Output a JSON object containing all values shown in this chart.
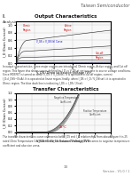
{
  "page_title": "Taiwan Semiconductor",
  "section_label": "II.\nAnalysis",
  "chart1_title": "Output Characteristics",
  "chart1_xlabel": "V_DS (Drain to Source Voltage (V))",
  "chart1_ylabel": "I_D (Drain Current)",
  "chart1_note": "V_GS = V_GS (th) Curve",
  "chart1_regions": [
    "Ohmic Region",
    "Active Region",
    "Cut-off Region"
  ],
  "chart1_region_colors": [
    "#cc0000",
    "#cc0000",
    "#cc0000"
  ],
  "chart2_title": "Transfer Characteristics",
  "chart2_xlabel": "V_GS (Gate to Source Voltage (V))",
  "chart2_ylabel": "I_D (Drain Current)",
  "chart2_note": "25°C",
  "chart2_annotations": [
    "Negative Temperature\nCoefficient",
    "Positive Temperature\nCoefficient"
  ],
  "text_body1": "In output characteristics, three major regions are introduced; Ohmic region, Active region, and Cut off region. This figure also shows curves defined by I_D vs V_DS at various gate to source voltage conditions. Since MOSFET is turned on while V_GS > V_GS(th), it is operated in cut off region, current I_D=I_DSS~0(uA). It is operated at linear region; finally, when I_DS > I_D / V_DS(sat), it is operated in Ohmic region. The blue dash line is indicating I_DS = I_DS / 2(sat).",
  "text_body2": "The transfer characteristics curve represents both I_DS and I_D relationship. From above figure it is 25 rated (Zero Temperature Coefficient). If V_GS is above 25 rated, I_DS becomes to negative temperature coefficient and also vice versa.",
  "page_number": "13",
  "doc_ref": "Version - V1.0 / 1",
  "bg_color": "#ffffff",
  "chart_bg": "#f8f8f8",
  "grid_color": "#cccccc",
  "curve_colors_output": [
    "#333333",
    "#333333",
    "#333333",
    "#333333",
    "#333333",
    "#333333"
  ],
  "curve_color_special": "#0000cc",
  "curve_colors_transfer": [
    "#333333",
    "#555555",
    "#777777",
    "#999999"
  ]
}
